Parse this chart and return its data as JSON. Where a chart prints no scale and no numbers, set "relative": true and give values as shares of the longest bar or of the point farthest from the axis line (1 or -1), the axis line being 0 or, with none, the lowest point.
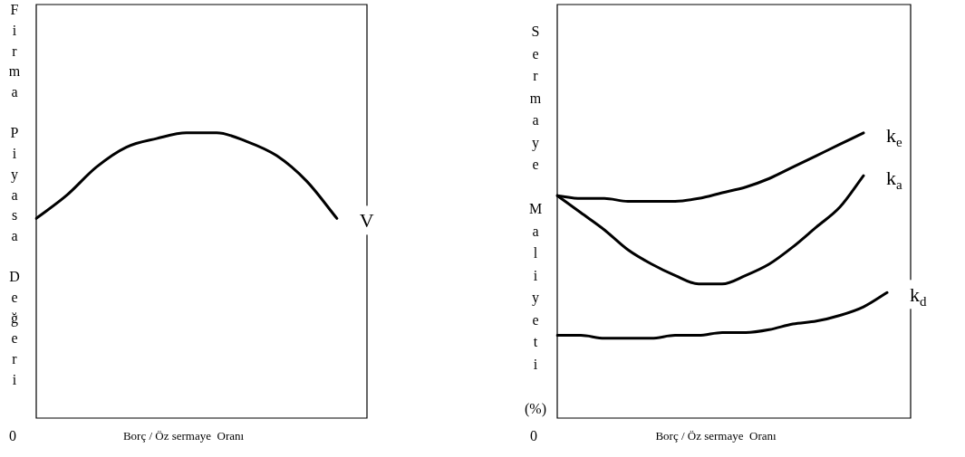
{
  "chart_data": [
    {
      "type": "line",
      "ylabel": "Firma Piyasa Değeri",
      "xlabel": "Borç / Öz sermaye  Oranı",
      "annotations": [
        "0"
      ],
      "relative": true,
      "marker": "none",
      "categories": [
        null,
        null,
        null,
        null,
        null,
        null,
        null,
        null,
        null,
        null,
        null,
        null
      ],
      "series": [
        {
          "name": "V",
          "color": "#000000",
          "values": [
            0.7,
            0.78,
            0.88,
            0.95,
            0.98,
            1,
            1,
            0.97,
            0.92,
            0.83,
            0.7,
            null
          ]
        }
      ]
    },
    {
      "type": "line",
      "ylabel": "Sermaye Maliyeti (%)",
      "xlabel": "Borç / Öz sermaye  Oranı",
      "annotations": [
        "0"
      ],
      "relative": true,
      "marker": "none",
      "categories": [
        null,
        null,
        null,
        null,
        null,
        null,
        null,
        null,
        null,
        null,
        null,
        null,
        null,
        null,
        null,
        null
      ],
      "series": [
        {
          "name": "k$_{e}$",
          "color": "#000000",
          "values": [
            0.78,
            0.77,
            0.77,
            0.76,
            0.76,
            0.76,
            0.77,
            0.79,
            0.81,
            0.84,
            0.88,
            0.92,
            0.96,
            1,
            null,
            null
          ]
        },
        {
          "name": "k$_{a}$",
          "color": "#000000",
          "values": [
            0.78,
            0.72,
            0.66,
            0.59,
            0.54,
            0.5,
            0.47,
            0.47,
            0.5,
            0.54,
            0.6,
            0.67,
            0.74,
            0.85,
            null,
            null
          ]
        },
        {
          "name": "k$_{d}$",
          "color": "#000000",
          "values": [
            0.29,
            0.29,
            0.28,
            0.28,
            0.28,
            0.29,
            0.29,
            0.3,
            0.3,
            0.31,
            0.33,
            0.34,
            0.36,
            0.39,
            0.44,
            null
          ]
        }
      ]
    }
  ]
}
